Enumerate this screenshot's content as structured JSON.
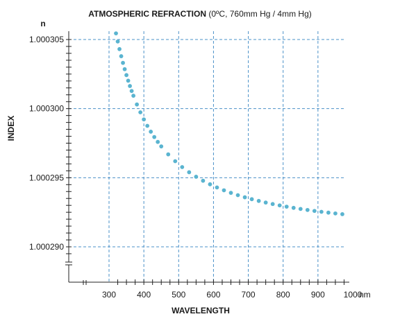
{
  "chart_data": {
    "type": "scatter",
    "title": "ATMOSPHERIC REFRACTION (0ºC, 760mm Hg / 4mm Hg)",
    "title_bold_part": "ATMOSPHERIC REFRACTION",
    "title_rest_part": "(0ºC, 760mm Hg / 4mm Hg)",
    "xlabel": "WAVELENGTH",
    "ylabel": "INDEX",
    "y_unit_label": "n",
    "x_unit_label": "nm",
    "xlim": [
      200,
      1000
    ],
    "ylim": [
      1.000288,
      1.000306
    ],
    "y_axis_break": true,
    "x_axis_break": true,
    "grid": "dashed",
    "legend": "none",
    "marker_color": "#5ab4d0",
    "grid_color": "#4a90c8",
    "x_tick_values": [
      300,
      400,
      500,
      600,
      700,
      800,
      900,
      1000
    ],
    "x_tick_labels": [
      "300",
      "400",
      "500",
      "600",
      "700",
      "800",
      "900",
      "1000"
    ],
    "y_tick_values": [
      1.00029,
      1.000295,
      1.0003,
      1.000305
    ],
    "y_tick_labels": [
      "1.000290",
      "1.000295",
      "1.000300",
      "1.000305"
    ],
    "series": [
      {
        "x": [
          320,
          325,
          330,
          335,
          340,
          345,
          350,
          355,
          360,
          365,
          370,
          380,
          390,
          400,
          410,
          420,
          430,
          440,
          450,
          470,
          490,
          510,
          530,
          550,
          570,
          590,
          610,
          630,
          650,
          670,
          690,
          710,
          730,
          750,
          770,
          790,
          810,
          830,
          850,
          870,
          890,
          910,
          930,
          950,
          970
        ],
        "y": [
          1.000305445,
          1.000304857,
          1.000304308,
          1.000303792,
          1.000303309,
          1.000302854,
          1.000302425,
          1.00030202,
          1.000301638,
          1.000301276,
          1.000300933,
          1.000300301,
          1.000299733,
          1.000299219,
          1.000298754,
          1.00029833,
          1.000297944,
          1.00029759,
          1.000297266,
          1.00029669,
          1.000296196,
          1.000295769,
          1.000295396,
          1.00029507,
          1.000294781,
          1.000294524,
          1.000294295,
          1.00029409,
          1.000293905,
          1.000293737,
          1.000293585,
          1.000293446,
          1.00029332,
          1.000293203,
          1.000293096,
          1.000292997,
          1.000292905,
          1.00029282,
          1.000292741,
          1.000292667,
          1.000292598,
          1.000292534,
          1.000292473,
          1.000292416,
          1.000292363
        ]
      }
    ]
  }
}
